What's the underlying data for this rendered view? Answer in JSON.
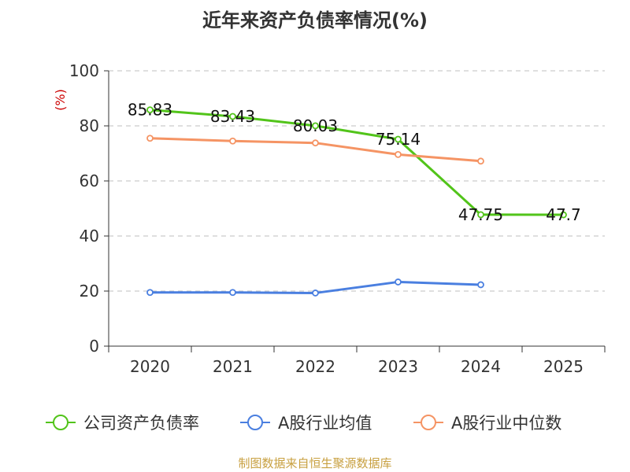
{
  "chart_data": {
    "type": "line",
    "title": "近年来资产负债率情况(%)",
    "ylabel": "(%)",
    "xlabel": "",
    "ylim": [
      0,
      100
    ],
    "yticks": [
      0,
      20,
      40,
      60,
      80,
      100
    ],
    "categories": [
      "2020",
      "2021",
      "2022",
      "2023",
      "2024",
      "2025"
    ],
    "grid": true,
    "legend_position": "bottom",
    "series": [
      {
        "name": "公司资产负债率",
        "color": "#52c41a",
        "values": [
          85.83,
          83.43,
          80.03,
          75.14,
          47.75,
          47.7
        ],
        "labels": [
          "85.83",
          "83.43",
          "80.03",
          "75.14",
          "47.75",
          "47.7"
        ]
      },
      {
        "name": "A股行业均值",
        "color": "#4a7fe0",
        "values": [
          19.5,
          19.5,
          19.3,
          23.3,
          22.3,
          null
        ]
      },
      {
        "name": "A股行业中位数",
        "color": "#f59464",
        "values": [
          75.5,
          74.5,
          73.8,
          69.6,
          67.2,
          null
        ]
      }
    ]
  },
  "source": "制图数据来自恒生聚源数据库"
}
